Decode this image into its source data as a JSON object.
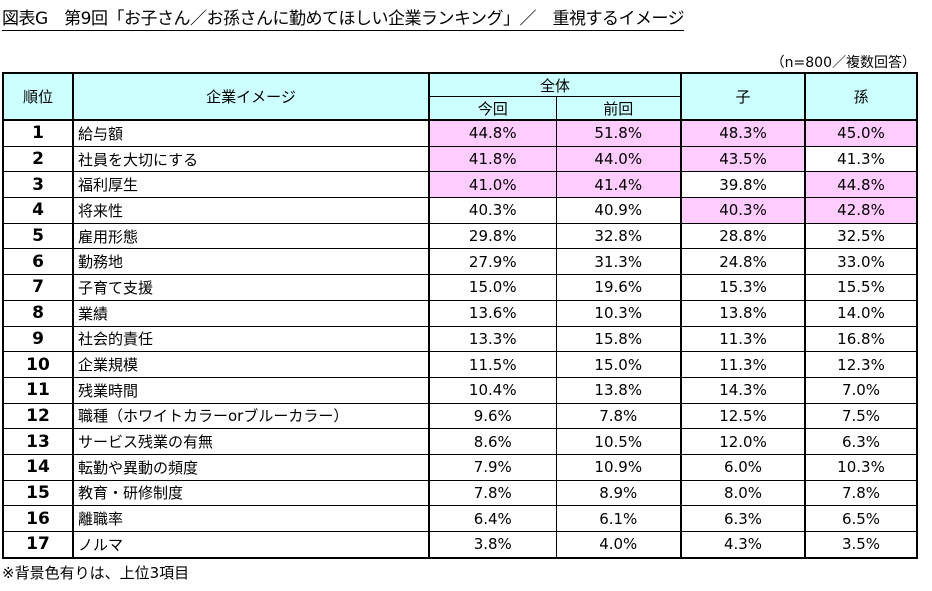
{
  "title": "図表G　第9回「お子さん／お孫さんに勤めてほしい企業ランキング」／　重視するイメージ",
  "note": "（n=800／複数回答）",
  "headers": {
    "rank": "順位",
    "item": "企業イメージ",
    "overall": "全体",
    "current": "今回",
    "previous": "前回",
    "child": "子",
    "grandchild": "孫"
  },
  "highlight_color": "#ffccff",
  "header_color": "#ccffff",
  "rows": [
    {
      "rank": "1",
      "item": "給与額",
      "current": "44.8%",
      "previous": "51.8%",
      "child": "48.3%",
      "grandchild": "45.0%",
      "hl": [
        1,
        1,
        1,
        1
      ]
    },
    {
      "rank": "2",
      "item": "社員を大切にする",
      "current": "41.8%",
      "previous": "44.0%",
      "child": "43.5%",
      "grandchild": "41.3%",
      "hl": [
        1,
        1,
        1,
        0
      ]
    },
    {
      "rank": "3",
      "item": "福利厚生",
      "current": "41.0%",
      "previous": "41.4%",
      "child": "39.8%",
      "grandchild": "44.8%",
      "hl": [
        1,
        1,
        0,
        1
      ]
    },
    {
      "rank": "4",
      "item": "将来性",
      "current": "40.3%",
      "previous": "40.9%",
      "child": "40.3%",
      "grandchild": "42.8%",
      "hl": [
        0,
        0,
        1,
        1
      ]
    },
    {
      "rank": "5",
      "item": "雇用形態",
      "current": "29.8%",
      "previous": "32.8%",
      "child": "28.8%",
      "grandchild": "32.5%",
      "hl": [
        0,
        0,
        0,
        0
      ]
    },
    {
      "rank": "6",
      "item": "勤務地",
      "current": "27.9%",
      "previous": "31.3%",
      "child": "24.8%",
      "grandchild": "33.0%",
      "hl": [
        0,
        0,
        0,
        0
      ]
    },
    {
      "rank": "7",
      "item": "子育て支援",
      "current": "15.0%",
      "previous": "19.6%",
      "child": "15.3%",
      "grandchild": "15.5%",
      "hl": [
        0,
        0,
        0,
        0
      ]
    },
    {
      "rank": "8",
      "item": "業績",
      "current": "13.6%",
      "previous": "10.3%",
      "child": "13.8%",
      "grandchild": "14.0%",
      "hl": [
        0,
        0,
        0,
        0
      ]
    },
    {
      "rank": "9",
      "item": "社会的責任",
      "current": "13.3%",
      "previous": "15.8%",
      "child": "11.3%",
      "grandchild": "16.8%",
      "hl": [
        0,
        0,
        0,
        0
      ]
    },
    {
      "rank": "10",
      "item": "企業規模",
      "current": "11.5%",
      "previous": "15.0%",
      "child": "11.3%",
      "grandchild": "12.3%",
      "hl": [
        0,
        0,
        0,
        0
      ]
    },
    {
      "rank": "11",
      "item": "残業時間",
      "current": "10.4%",
      "previous": "13.8%",
      "child": "14.3%",
      "grandchild": "7.0%",
      "hl": [
        0,
        0,
        0,
        0
      ]
    },
    {
      "rank": "12",
      "item": "職種（ホワイトカラーorブルーカラー）",
      "current": "9.6%",
      "previous": "7.8%",
      "child": "12.5%",
      "grandchild": "7.5%",
      "hl": [
        0,
        0,
        0,
        0
      ]
    },
    {
      "rank": "13",
      "item": "サービス残業の有無",
      "current": "8.6%",
      "previous": "10.5%",
      "child": "12.0%",
      "grandchild": "6.3%",
      "hl": [
        0,
        0,
        0,
        0
      ]
    },
    {
      "rank": "14",
      "item": "転勤や異動の頻度",
      "current": "7.9%",
      "previous": "10.9%",
      "child": "6.0%",
      "grandchild": "10.3%",
      "hl": [
        0,
        0,
        0,
        0
      ]
    },
    {
      "rank": "15",
      "item": "教育・研修制度",
      "current": "7.8%",
      "previous": "8.9%",
      "child": "8.0%",
      "grandchild": "7.8%",
      "hl": [
        0,
        0,
        0,
        0
      ]
    },
    {
      "rank": "16",
      "item": "離職率",
      "current": "6.4%",
      "previous": "6.1%",
      "child": "6.3%",
      "grandchild": "6.5%",
      "hl": [
        0,
        0,
        0,
        0
      ]
    },
    {
      "rank": "17",
      "item": "ノルマ",
      "current": "3.8%",
      "previous": "4.0%",
      "child": "4.3%",
      "grandchild": "3.5%",
      "hl": [
        0,
        0,
        0,
        0
      ]
    }
  ],
  "footnote": "※背景色有りは、上位3項目"
}
